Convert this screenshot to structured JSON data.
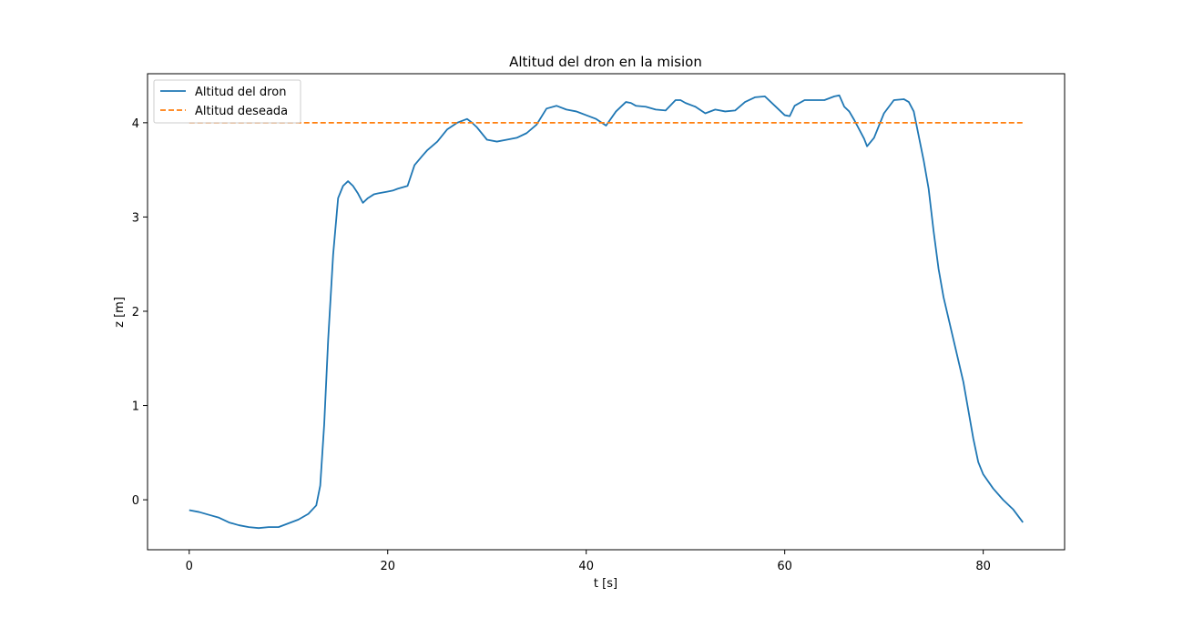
{
  "chart_data": {
    "type": "line",
    "title": "Altitud del dron en la mision",
    "xlabel": "t [s]",
    "ylabel": "z [m]",
    "xlim": [
      -4.2,
      88.2
    ],
    "ylim": [
      -0.53,
      4.52
    ],
    "xticks": [
      0,
      20,
      40,
      60,
      80
    ],
    "yticks": [
      0,
      1,
      2,
      3,
      4
    ],
    "grid": false,
    "legend_position": "upper-left",
    "colors": {
      "drone": "#1f77b4",
      "desired": "#ff7f0e"
    },
    "series": [
      {
        "name": "Altitud del dron",
        "style": "solid",
        "x": [
          0,
          1,
          2,
          3,
          4,
          5,
          6,
          7,
          8,
          9,
          10,
          11,
          12,
          12.8,
          13.2,
          13.6,
          14,
          14.5,
          15,
          15.5,
          16,
          16.5,
          17,
          17.5,
          18,
          18.6,
          19,
          19.5,
          20,
          20.5,
          21,
          22,
          22.7,
          23.5,
          24,
          25,
          26,
          27,
          28,
          28.5,
          29,
          30,
          31,
          32,
          33,
          34,
          35,
          36,
          37,
          38,
          39,
          40,
          41,
          42,
          43,
          44,
          44.5,
          45,
          46,
          47,
          48,
          49,
          49.5,
          50,
          51,
          52,
          53,
          54,
          55,
          56,
          57,
          58,
          59,
          60,
          60.5,
          61,
          62,
          63,
          64,
          65,
          65.5,
          66,
          66.5,
          67,
          68,
          68.3,
          69,
          70,
          71,
          72,
          72.5,
          73,
          74,
          74.5,
          75,
          75.5,
          76,
          77,
          78,
          78.5,
          79,
          79.5,
          80,
          81,
          82,
          83,
          84
        ],
        "y": [
          -0.11,
          -0.13,
          -0.16,
          -0.19,
          -0.24,
          -0.27,
          -0.29,
          -0.3,
          -0.29,
          -0.29,
          -0.25,
          -0.21,
          -0.15,
          -0.06,
          0.15,
          0.8,
          1.7,
          2.6,
          3.2,
          3.33,
          3.38,
          3.33,
          3.25,
          3.15,
          3.2,
          3.24,
          3.25,
          3.26,
          3.27,
          3.28,
          3.3,
          3.33,
          3.55,
          3.65,
          3.71,
          3.8,
          3.93,
          4.0,
          4.04,
          4.0,
          3.95,
          3.82,
          3.8,
          3.82,
          3.84,
          3.89,
          3.98,
          4.15,
          4.18,
          4.14,
          4.12,
          4.08,
          4.04,
          3.97,
          4.12,
          4.22,
          4.21,
          4.18,
          4.17,
          4.14,
          4.13,
          4.24,
          4.24,
          4.21,
          4.17,
          4.1,
          4.14,
          4.12,
          4.13,
          4.22,
          4.27,
          4.28,
          4.18,
          4.08,
          4.07,
          4.18,
          4.24,
          4.24,
          4.24,
          4.28,
          4.29,
          4.17,
          4.12,
          4.03,
          3.83,
          3.75,
          3.84,
          4.1,
          4.24,
          4.25,
          4.22,
          4.12,
          3.6,
          3.3,
          2.85,
          2.45,
          2.15,
          1.7,
          1.25,
          0.95,
          0.65,
          0.4,
          0.27,
          0.12,
          0.0,
          -0.1,
          -0.24
        ]
      },
      {
        "name": "Altitud deseada",
        "style": "dashed",
        "x": [
          0,
          84
        ],
        "y": [
          4,
          4
        ]
      }
    ]
  }
}
